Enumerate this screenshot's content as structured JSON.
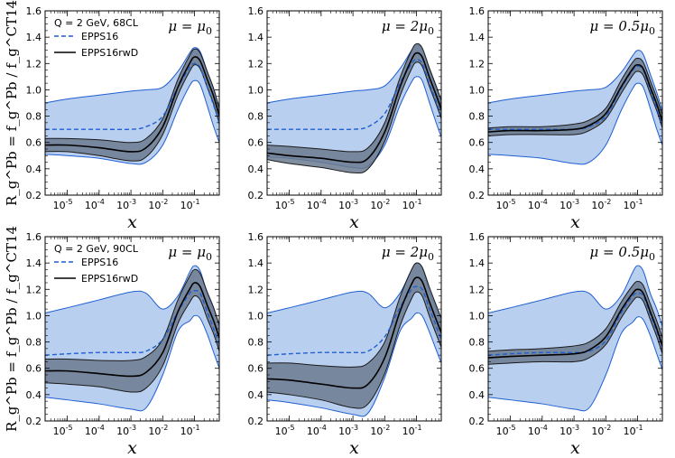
{
  "chart_data": {
    "type": "line",
    "layout": "2x3 grid",
    "xscale": "log",
    "xlim": [
      2e-06,
      0.6
    ],
    "ylim": [
      0.2,
      1.6
    ],
    "xlabel": "x",
    "ylabel": "R_g^Pb = f_g^Pb / f_g^CT14",
    "xtick_labels": [
      "10",
      "10",
      "10",
      "10",
      "10"
    ],
    "xtick_exponents": [
      "-5",
      "-4",
      "-3",
      "-2",
      "-1"
    ],
    "ytick_labels": [
      "0.2",
      "0.4",
      "0.6",
      "0.8",
      "1.0",
      "1.2",
      "1.4",
      "1.6"
    ],
    "yticks": [
      0.2,
      0.4,
      0.6,
      0.8,
      1.0,
      1.2,
      1.4,
      1.6
    ],
    "legend_entries": [
      "EPPS16",
      "EPPS16rwD"
    ],
    "colors": {
      "epps16": "#1f5fd0",
      "epps16_band": "#b9cff0",
      "rwd": "#000000",
      "rwd_band": "#6b7a8f",
      "rwd_edge": "#1a1a1a"
    },
    "x_points": [
      2e-06,
      1e-05,
      0.0001,
      0.001,
      0.003,
      0.01,
      0.03,
      0.07,
      0.1,
      0.15,
      0.25,
      0.4,
      0.6
    ],
    "panels": [
      {
        "row": 0,
        "col": 0,
        "label_main": "μ = μ",
        "label_sub": "0",
        "info": "Q = 2 GeV,  68CL",
        "show_legend": true,
        "epps16": {
          "central": [
            0.7,
            0.7,
            0.7,
            0.7,
            0.72,
            0.8,
            1.02,
            1.17,
            1.2,
            1.17,
            1.02,
            0.88,
            0.75
          ],
          "upper": [
            0.9,
            0.93,
            0.96,
            0.99,
            1.0,
            1.02,
            1.14,
            1.28,
            1.32,
            1.29,
            1.14,
            1.0,
            0.85
          ],
          "lower": [
            0.51,
            0.5,
            0.48,
            0.44,
            0.45,
            0.58,
            0.85,
            1.03,
            1.07,
            1.04,
            0.88,
            0.72,
            0.6
          ]
        },
        "rwd": {
          "central": [
            0.58,
            0.58,
            0.56,
            0.53,
            0.56,
            0.72,
            1.02,
            1.2,
            1.25,
            1.22,
            1.08,
            0.95,
            0.8
          ],
          "upper": [
            0.63,
            0.63,
            0.62,
            0.6,
            0.63,
            0.78,
            1.08,
            1.26,
            1.31,
            1.28,
            1.14,
            1.01,
            0.86
          ],
          "lower": [
            0.53,
            0.53,
            0.5,
            0.46,
            0.49,
            0.66,
            0.96,
            1.14,
            1.19,
            1.16,
            1.02,
            0.89,
            0.74
          ]
        }
      },
      {
        "row": 0,
        "col": 1,
        "label_main": "μ = 2μ",
        "label_sub": "0",
        "info": "",
        "show_legend": false,
        "epps16": {
          "central": [
            0.7,
            0.7,
            0.7,
            0.7,
            0.72,
            0.82,
            1.05,
            1.2,
            1.23,
            1.2,
            1.05,
            0.92,
            0.8
          ],
          "upper": [
            0.9,
            0.93,
            0.96,
            0.99,
            1.0,
            1.03,
            1.16,
            1.3,
            1.34,
            1.31,
            1.16,
            1.02,
            0.88
          ],
          "lower": [
            0.49,
            0.48,
            0.45,
            0.41,
            0.42,
            0.58,
            0.88,
            1.06,
            1.1,
            1.07,
            0.91,
            0.76,
            0.64
          ]
        },
        "rwd": {
          "central": [
            0.52,
            0.5,
            0.48,
            0.45,
            0.48,
            0.68,
            1.02,
            1.23,
            1.28,
            1.25,
            1.1,
            0.97,
            0.85
          ],
          "upper": [
            0.58,
            0.57,
            0.55,
            0.53,
            0.56,
            0.75,
            1.09,
            1.3,
            1.35,
            1.32,
            1.17,
            1.04,
            0.92
          ],
          "lower": [
            0.47,
            0.44,
            0.41,
            0.37,
            0.4,
            0.61,
            0.95,
            1.16,
            1.21,
            1.18,
            1.03,
            0.9,
            0.78
          ]
        }
      },
      {
        "row": 0,
        "col": 2,
        "label_main": "μ = 0.5μ",
        "label_sub": "0",
        "info": "",
        "show_legend": false,
        "epps16": {
          "central": [
            0.7,
            0.7,
            0.7,
            0.7,
            0.72,
            0.8,
            1.01,
            1.15,
            1.18,
            1.15,
            1.0,
            0.86,
            0.73
          ],
          "upper": [
            0.9,
            0.93,
            0.96,
            0.99,
            1.0,
            1.02,
            1.13,
            1.26,
            1.3,
            1.27,
            1.12,
            0.98,
            0.84
          ],
          "lower": [
            0.51,
            0.5,
            0.48,
            0.44,
            0.45,
            0.58,
            0.84,
            1.01,
            1.05,
            1.02,
            0.86,
            0.7,
            0.58
          ]
        },
        "rwd": {
          "central": [
            0.68,
            0.69,
            0.69,
            0.7,
            0.73,
            0.82,
            1.02,
            1.16,
            1.19,
            1.16,
            1.02,
            0.89,
            0.76
          ],
          "upper": [
            0.71,
            0.72,
            0.72,
            0.74,
            0.77,
            0.86,
            1.07,
            1.21,
            1.24,
            1.21,
            1.07,
            0.94,
            0.81
          ],
          "lower": [
            0.65,
            0.66,
            0.66,
            0.66,
            0.69,
            0.78,
            0.97,
            1.11,
            1.14,
            1.11,
            0.97,
            0.84,
            0.71
          ]
        }
      },
      {
        "row": 1,
        "col": 0,
        "label_main": "μ = μ",
        "label_sub": "0",
        "info": "Q = 2 GeV,  90CL",
        "show_legend": true,
        "epps16": {
          "central": [
            0.7,
            0.71,
            0.72,
            0.72,
            0.73,
            0.82,
            1.03,
            1.17,
            1.19,
            1.17,
            1.03,
            0.9,
            0.78
          ],
          "upper": [
            1.02,
            1.06,
            1.12,
            1.18,
            1.17,
            1.05,
            1.15,
            1.33,
            1.38,
            1.34,
            1.17,
            1.05,
            0.92
          ],
          "lower": [
            0.38,
            0.36,
            0.33,
            0.29,
            0.3,
            0.55,
            0.88,
            0.96,
            1.0,
            0.98,
            0.86,
            0.72,
            0.6
          ]
        },
        "rwd": {
          "central": [
            0.58,
            0.58,
            0.56,
            0.54,
            0.57,
            0.72,
            1.03,
            1.2,
            1.25,
            1.22,
            1.08,
            0.96,
            0.83
          ],
          "upper": [
            0.67,
            0.67,
            0.66,
            0.66,
            0.69,
            0.82,
            1.12,
            1.3,
            1.35,
            1.32,
            1.18,
            1.06,
            0.93
          ],
          "lower": [
            0.49,
            0.48,
            0.46,
            0.42,
            0.45,
            0.62,
            0.94,
            1.1,
            1.15,
            1.12,
            0.98,
            0.86,
            0.73
          ]
        }
      },
      {
        "row": 1,
        "col": 1,
        "label_main": "μ = 2μ",
        "label_sub": "0",
        "info": "",
        "show_legend": false,
        "epps16": {
          "central": [
            0.7,
            0.71,
            0.72,
            0.72,
            0.73,
            0.84,
            1.06,
            1.2,
            1.22,
            1.2,
            1.06,
            0.93,
            0.82
          ],
          "upper": [
            1.02,
            1.06,
            1.12,
            1.18,
            1.17,
            1.06,
            1.17,
            1.35,
            1.4,
            1.36,
            1.19,
            1.07,
            0.94
          ],
          "lower": [
            0.36,
            0.34,
            0.3,
            0.25,
            0.26,
            0.53,
            0.88,
            0.98,
            1.02,
            1.0,
            0.88,
            0.75,
            0.64
          ]
        },
        "rwd": {
          "central": [
            0.52,
            0.51,
            0.48,
            0.45,
            0.48,
            0.68,
            1.03,
            1.24,
            1.29,
            1.26,
            1.11,
            0.98,
            0.87
          ],
          "upper": [
            0.64,
            0.64,
            0.62,
            0.61,
            0.64,
            0.8,
            1.14,
            1.35,
            1.4,
            1.37,
            1.22,
            1.09,
            0.98
          ],
          "lower": [
            0.42,
            0.4,
            0.36,
            0.3,
            0.33,
            0.56,
            0.92,
            1.13,
            1.18,
            1.15,
            1.0,
            0.87,
            0.76
          ]
        }
      },
      {
        "row": 1,
        "col": 2,
        "label_main": "μ = 0.5μ",
        "label_sub": "0",
        "info": "",
        "show_legend": false,
        "epps16": {
          "central": [
            0.7,
            0.71,
            0.72,
            0.72,
            0.73,
            0.81,
            1.02,
            1.15,
            1.17,
            1.15,
            1.01,
            0.88,
            0.76
          ],
          "upper": [
            1.02,
            1.06,
            1.12,
            1.18,
            1.17,
            1.05,
            1.15,
            1.33,
            1.38,
            1.34,
            1.17,
            1.05,
            0.92
          ],
          "lower": [
            0.38,
            0.36,
            0.33,
            0.29,
            0.3,
            0.55,
            0.86,
            0.95,
            0.99,
            0.97,
            0.85,
            0.71,
            0.59
          ]
        },
        "rwd": {
          "central": [
            0.68,
            0.69,
            0.7,
            0.71,
            0.74,
            0.84,
            1.04,
            1.17,
            1.2,
            1.17,
            1.03,
            0.9,
            0.77
          ],
          "upper": [
            0.73,
            0.74,
            0.75,
            0.77,
            0.8,
            0.9,
            1.1,
            1.23,
            1.26,
            1.23,
            1.09,
            0.96,
            0.83
          ],
          "lower": [
            0.63,
            0.64,
            0.65,
            0.65,
            0.68,
            0.78,
            0.98,
            1.11,
            1.14,
            1.11,
            0.97,
            0.84,
            0.71
          ]
        }
      }
    ]
  }
}
